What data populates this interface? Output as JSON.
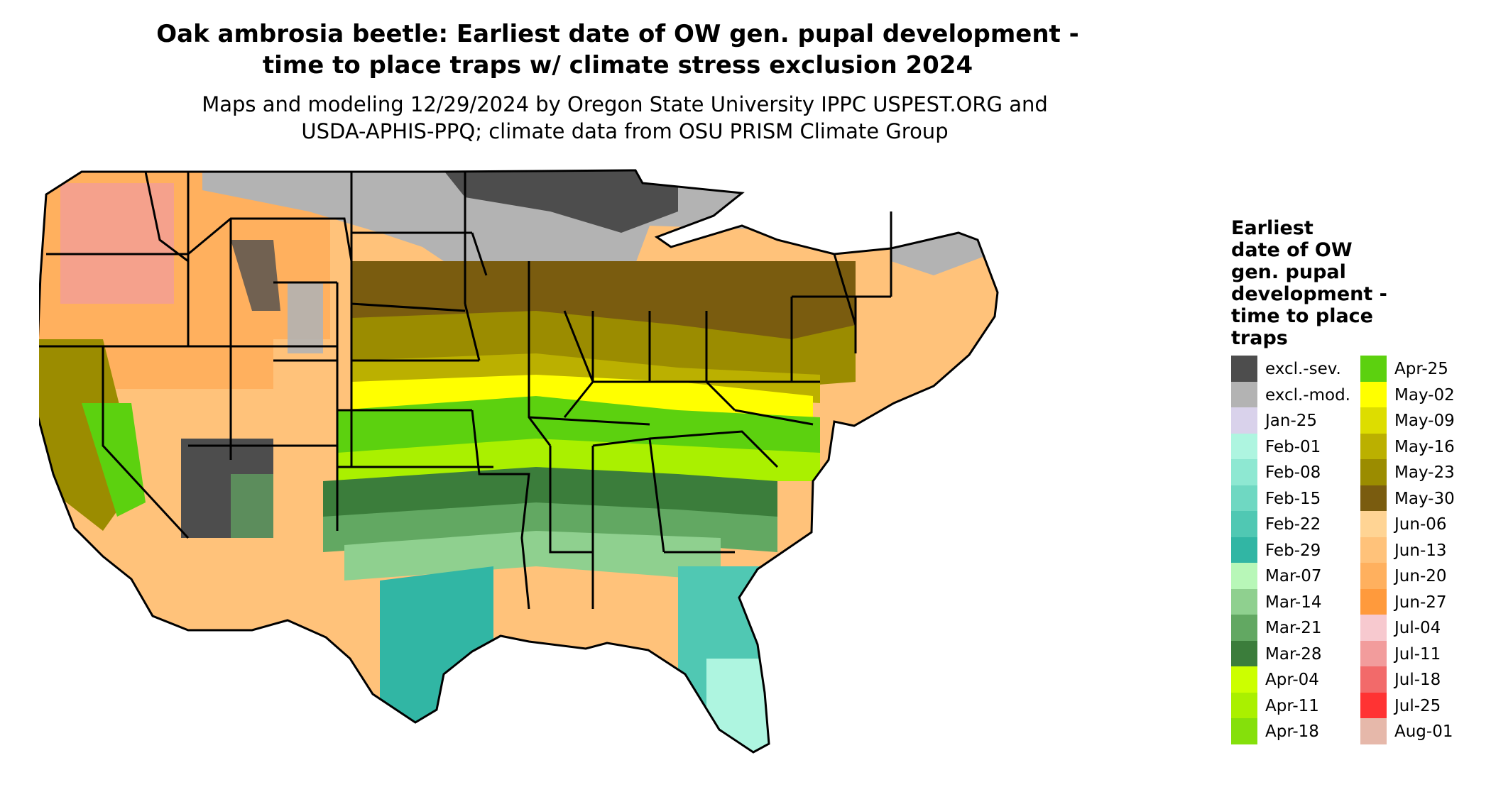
{
  "title": {
    "line1": "Oak ambrosia beetle: Earliest date of OW gen. pupal development -",
    "line2": "time to place traps w/ climate stress exclusion 2024"
  },
  "subtitle": {
    "line1": "Maps and modeling 12/29/2024 by Oregon State University IPPC USPEST.ORG and",
    "line2": "USDA-APHIS-PPQ; climate data from OSU PRISM Climate Group"
  },
  "legend": {
    "title_lines": [
      "Earliest",
      "date of OW",
      "gen. pupal",
      "development -",
      "time to place",
      "traps"
    ],
    "items": [
      {
        "label": "excl.-sev.",
        "color": "#4d4d4d"
      },
      {
        "label": "excl.-mod.",
        "color": "#b3b3b3"
      },
      {
        "label": "Jan-25",
        "color": "#d9d2eb"
      },
      {
        "label": "Feb-01",
        "color": "#aef5e0"
      },
      {
        "label": "Feb-08",
        "color": "#8ee8d2"
      },
      {
        "label": "Feb-15",
        "color": "#6fd8c2"
      },
      {
        "label": "Feb-22",
        "color": "#50c8b3"
      },
      {
        "label": "Feb-29",
        "color": "#31b6a4"
      },
      {
        "label": "Mar-07",
        "color": "#b8f7b8"
      },
      {
        "label": "Mar-14",
        "color": "#8fd08f"
      },
      {
        "label": "Mar-21",
        "color": "#62a862"
      },
      {
        "label": "Mar-28",
        "color": "#3b7d3b"
      },
      {
        "label": "Apr-04",
        "color": "#ccff00"
      },
      {
        "label": "Apr-11",
        "color": "#aaf000"
      },
      {
        "label": "Apr-18",
        "color": "#85e00b"
      },
      {
        "label": "Apr-25",
        "color": "#5cd10f"
      },
      {
        "label": "May-02",
        "color": "#ffff00"
      },
      {
        "label": "May-09",
        "color": "#dddd00"
      },
      {
        "label": "May-16",
        "color": "#bbb000"
      },
      {
        "label": "May-23",
        "color": "#9b8c00"
      },
      {
        "label": "May-30",
        "color": "#7a5c0f"
      },
      {
        "label": "Jun-06",
        "color": "#ffd494"
      },
      {
        "label": "Jun-13",
        "color": "#ffc27a"
      },
      {
        "label": "Jun-20",
        "color": "#ffb05e"
      },
      {
        "label": "Jun-27",
        "color": "#ff9a3c"
      },
      {
        "label": "Jul-04",
        "color": "#f7c9cf"
      },
      {
        "label": "Jul-11",
        "color": "#f29c9c"
      },
      {
        "label": "Jul-18",
        "color": "#f26a6a"
      },
      {
        "label": "Jul-25",
        "color": "#ff3333"
      },
      {
        "label": "Aug-01",
        "color": "#e6b8aa"
      }
    ]
  }
}
